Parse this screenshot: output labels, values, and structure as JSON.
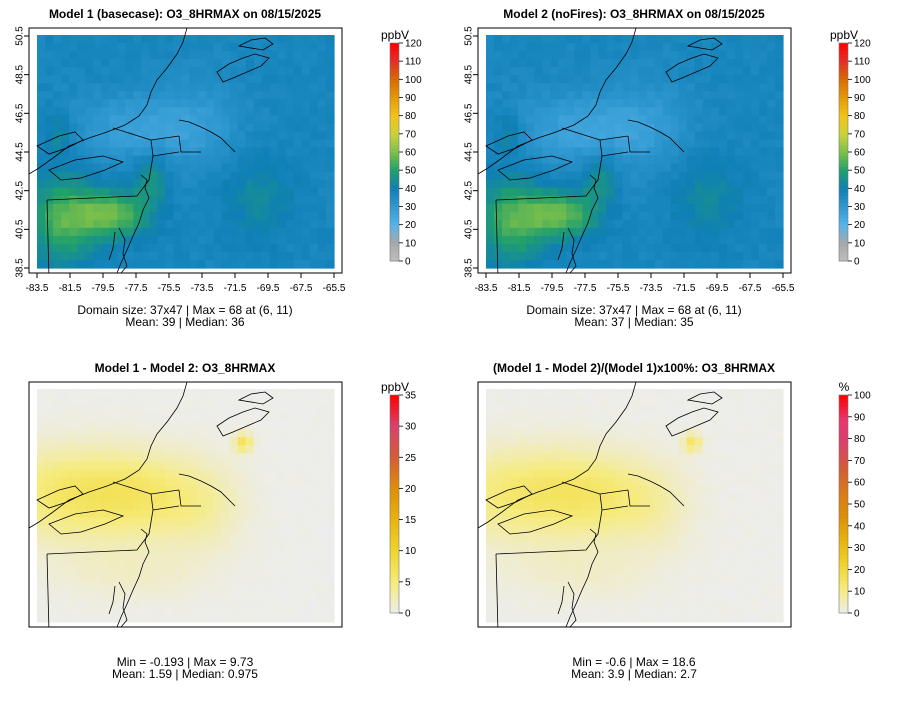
{
  "panels": [
    {
      "id": "p1",
      "title": "Model 1 (basecase): O3_8HRMAX on 08/15/2025",
      "stats_line1": "Domain size: 37x47 | Max = 68 at (6, 11)",
      "stats_line2": "Mean: 39 |  Median: 36",
      "colorbar": {
        "unit": "ppbV",
        "ticks": [
          "0",
          "10",
          "20",
          "30",
          "40",
          "50",
          "60",
          "70",
          "80",
          "90",
          "100",
          "110",
          "120"
        ],
        "palette": "ozone"
      },
      "field": "ozone-base",
      "axes": true
    },
    {
      "id": "p2",
      "title": "Model 2 (noFires): O3_8HRMAX on 08/15/2025",
      "stats_line1": "Domain size: 37x47 | Max = 68 at (6, 11)",
      "stats_line2": "Mean: 37 |  Median: 35",
      "colorbar": {
        "unit": "ppbV",
        "ticks": [
          "0",
          "10",
          "20",
          "30",
          "40",
          "50",
          "60",
          "70",
          "80",
          "90",
          "100",
          "110",
          "120"
        ],
        "palette": "ozone"
      },
      "field": "ozone-nofire",
      "axes": true
    },
    {
      "id": "p3",
      "title": "Model 1 - Model 2: O3_8HRMAX",
      "stats_line1": "Min = -0.193 | Max = 9.73",
      "stats_line2": "Mean: 1.59 |  Median: 0.975",
      "colorbar": {
        "unit": "ppbV",
        "ticks": [
          "0",
          "5",
          "10",
          "15",
          "20",
          "25",
          "30",
          "35"
        ],
        "palette": "diff"
      },
      "field": "diff",
      "axes": false
    },
    {
      "id": "p4",
      "title": "(Model 1 - Model 2)/(Model 1)x100%: O3_8HRMAX",
      "stats_line1": "Min = -0.6 | Max = 18.6",
      "stats_line2": "Mean: 3.9 |  Median: 2.7",
      "colorbar": {
        "unit": "%",
        "ticks": [
          "0",
          "10",
          "20",
          "30",
          "40",
          "50",
          "60",
          "70",
          "80",
          "90",
          "100"
        ],
        "palette": "pct"
      },
      "field": "pct",
      "axes": false
    }
  ],
  "axis": {
    "x_ticks": [
      "-83.5",
      "-81.5",
      "-79.5",
      "-77.5",
      "-75.5",
      "-73.5",
      "-71.5",
      "-69.5",
      "-67.5",
      "-65.5"
    ],
    "y_ticks": [
      "38.5",
      "40.5",
      "42.5",
      "44.5",
      "46.5",
      "48.5",
      "50.5"
    ]
  },
  "colors": {
    "ozone": [
      "#bebebe",
      "#a8a8a8",
      "#56b4e9",
      "#2f98d0",
      "#0f7fb6",
      "#21a06a",
      "#7cc04a",
      "#c9d23a",
      "#f3c316",
      "#e49b06",
      "#d76c00",
      "#e2302a",
      "#ff0000"
    ],
    "diff": [
      "#ededed",
      "#f6eb7d",
      "#f0d52c",
      "#e8b40e",
      "#dd8f05",
      "#d45c36",
      "#d8426a",
      "#ff0000"
    ],
    "pct": [
      "#ededed",
      "#f6eb7d",
      "#f0d52c",
      "#e8b40e",
      "#dd8f05",
      "#d87a18",
      "#d45c36",
      "#d8426a",
      "#e8356e",
      "#ff0000"
    ]
  }
}
